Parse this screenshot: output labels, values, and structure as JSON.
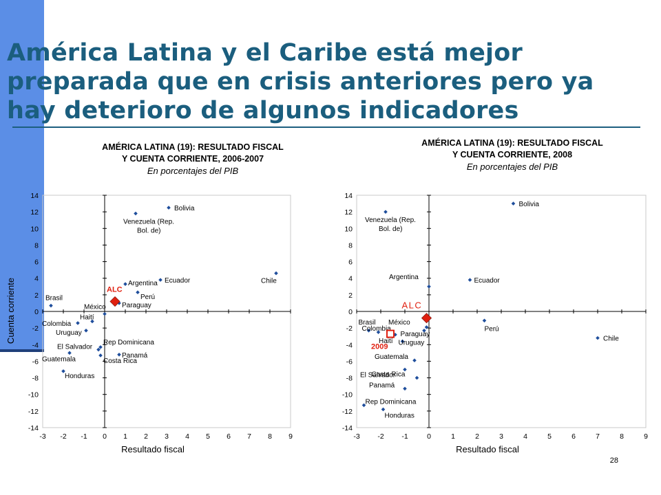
{
  "title": "América Latina y el Caribe está mejor preparada que en crisis anteriores pero ya hay deterioro de algunos indicadores",
  "page_number": "28",
  "colors": {
    "title": "#1b5e7e",
    "sidebar": "#5b8ee6",
    "marker": "#1f4e9c",
    "alc": "#e02010"
  },
  "chart_data": [
    {
      "type": "scatter",
      "title": "AMÉRICA LATINA (19): RESULTADO FISCAL",
      "title2": "Y CUENTA CORRIENTE, 2006-2007",
      "subtitle": "En porcentajes del PIB",
      "xlabel": "Resultado fiscal",
      "ylabel": "Cuenta corriente",
      "xlim": [
        -3,
        9
      ],
      "ylim": [
        -14,
        14
      ],
      "xticks": [
        "-3",
        "-2",
        "-1",
        "0",
        "1",
        "2",
        "3",
        "4",
        "5",
        "6",
        "7",
        "8",
        "9"
      ],
      "yticks": [
        "14",
        "12",
        "10",
        "8",
        "6",
        "4",
        "2",
        "0",
        "-2",
        "-4",
        "-6",
        "-8",
        "-10",
        "-12",
        "-14"
      ],
      "points": [
        {
          "label": "Bolivia",
          "x": 3.1,
          "y": 12.5
        },
        {
          "label": "Venezuela (Rep.",
          "label2": "Bol. de)",
          "x": 1.5,
          "y": 11.8
        },
        {
          "label": "Chile",
          "x": 8.3,
          "y": 4.6
        },
        {
          "label": "Ecuador",
          "x": 2.7,
          "y": 3.8
        },
        {
          "label": "Argentina",
          "x": 1.0,
          "y": 3.3
        },
        {
          "label": "Perú",
          "x": 1.6,
          "y": 2.3
        },
        {
          "label": "Paraguay",
          "x": 0.7,
          "y": 1.0
        },
        {
          "label": "Brasil",
          "x": -2.6,
          "y": 0.7
        },
        {
          "label": "México",
          "x": 0.0,
          "y": -0.3
        },
        {
          "label": "Haití",
          "x": -0.6,
          "y": -1.2
        },
        {
          "label": "Colombia",
          "x": -1.3,
          "y": -1.4
        },
        {
          "label": "Uruguay",
          "x": -0.9,
          "y": -2.3
        },
        {
          "label": "El Salvador",
          "x": -0.3,
          "y": -4.6
        },
        {
          "label": "Rep Dominicana",
          "x": -0.2,
          "y": -4.3
        },
        {
          "label": "Costa Rica",
          "x": -0.2,
          "y": -5.3
        },
        {
          "label": "Panamá",
          "x": 0.7,
          "y": -5.2
        },
        {
          "label": "Guatemala",
          "x": -1.7,
          "y": -5.0
        },
        {
          "label": "Honduras",
          "x": -2.0,
          "y": -7.2
        }
      ],
      "highlights": [
        {
          "label": "ALC",
          "x": 0.5,
          "y": 1.2,
          "shape": "diamond"
        }
      ]
    },
    {
      "type": "scatter",
      "title": "AMÉRICA LATINA (19): RESULTADO FISCAL",
      "title2": "Y CUENTA CORRIENTE, 2008",
      "subtitle": "En porcentajes del PIB",
      "xlabel": "Resultado fiscal",
      "ylabel": "",
      "xlim": [
        -3,
        9
      ],
      "ylim": [
        -14,
        14
      ],
      "xticks": [
        "-3",
        "-2",
        "-1",
        "0",
        "1",
        "2",
        "3",
        "4",
        "5",
        "6",
        "7",
        "8",
        "9"
      ],
      "yticks": [
        "14",
        "12",
        "10",
        "8",
        "6",
        "4",
        "2",
        "0",
        "-2",
        "-4",
        "-6",
        "-8",
        "-10",
        "-12",
        "-14"
      ],
      "points": [
        {
          "label": "Bolivia",
          "x": 3.5,
          "y": 13.0
        },
        {
          "label": "Venezuela (Rep.",
          "label2": "Bol. de)",
          "x": -1.8,
          "y": 12.0
        },
        {
          "label": "Argentina",
          "x": 0.0,
          "y": 3.0
        },
        {
          "label": "Ecuador",
          "x": 1.7,
          "y": 3.8
        },
        {
          "label": "Perú",
          "x": 2.3,
          "y": -1.1
        },
        {
          "label": "Chile",
          "x": 7.0,
          "y": -3.2
        },
        {
          "label": "Brasil",
          "x": -2.5,
          "y": -2.3
        },
        {
          "label": "México",
          "x": -0.2,
          "y": -2.3
        },
        {
          "label": "Colombia",
          "x": -1.7,
          "y": -2.4
        },
        {
          "label": "Haití",
          "x": -1.4,
          "y": -2.8
        },
        {
          "label": "Paraguay",
          "x": -0.1,
          "y": -1.9
        },
        {
          "label": "Uruguay",
          "x": -1.1,
          "y": -3.6
        },
        {
          "label": "Guatemala",
          "x": -0.6,
          "y": -5.9
        },
        {
          "label": "El Salvador",
          "x": -1.0,
          "y": -7.0
        },
        {
          "label": "Costa Rica",
          "x": -0.5,
          "y": -8.0
        },
        {
          "label": "Panamá",
          "x": -1.0,
          "y": -9.3
        },
        {
          "label": "Rep Dominicana",
          "x": -2.7,
          "y": -11.3
        },
        {
          "label": "Honduras",
          "x": -1.9,
          "y": -11.8
        },
        {
          "label": "",
          "x": -2.1,
          "y": -2.5
        }
      ],
      "highlights": [
        {
          "label": "ALC",
          "x": -0.1,
          "y": -0.8,
          "shape": "diamond"
        },
        {
          "label": "2009",
          "x": -1.6,
          "y": -2.7,
          "shape": "square"
        }
      ]
    }
  ]
}
